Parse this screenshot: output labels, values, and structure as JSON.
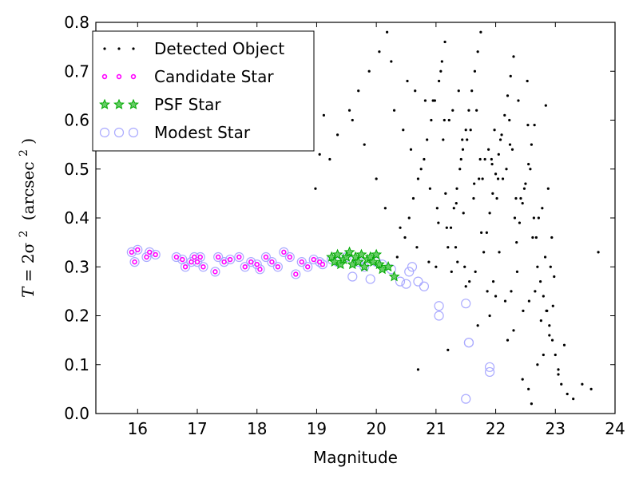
{
  "chart_data": {
    "type": "scatter",
    "title": "",
    "xlabel": "Magnitude",
    "ylabel": {
      "T": "T",
      "eq": "= 2σ",
      "sup": "2",
      "unit": "(arcsec",
      "unit_sup": "2",
      "close": ")"
    },
    "xlim": [
      15.3,
      24.0
    ],
    "ylim": [
      0.0,
      0.8
    ],
    "xticks": [
      16,
      17,
      18,
      19,
      20,
      21,
      22,
      23,
      24
    ],
    "yticks": [
      0.0,
      0.1,
      0.2,
      0.3,
      0.4,
      0.5,
      0.6,
      0.7,
      0.8
    ],
    "grid": false,
    "legend_position": "top-left",
    "colors": {
      "detected": "#000000",
      "candidate_edge": "#ff00ff",
      "candidate_face": "#ffffff",
      "psf_edge": "#00aa00",
      "psf_face": "#66cc66",
      "modest_edge": "#aaaaff"
    },
    "series": [
      {
        "name": "Detected Object",
        "marker": "dot",
        "x": [
          19.05,
          18.98,
          19.12,
          19.22,
          19.35,
          19.55,
          19.7,
          19.88,
          20.05,
          20.18,
          20.35,
          20.48,
          20.55,
          20.62,
          20.7,
          20.8,
          20.85,
          20.92,
          20.98,
          21.05,
          21.1,
          21.15,
          21.2,
          21.25,
          21.3,
          21.35,
          21.4,
          21.45,
          21.5,
          21.55,
          21.6,
          21.65,
          21.7,
          21.75,
          21.8,
          21.85,
          21.9,
          21.95,
          22.0,
          22.05,
          22.1,
          22.15,
          22.2,
          22.25,
          22.3,
          22.35,
          22.4,
          22.45,
          22.5,
          22.55,
          22.6,
          22.65,
          22.7,
          22.75,
          22.8,
          22.85,
          22.9,
          22.95,
          23.0,
          23.05,
          23.1,
          23.2,
          23.3,
          23.45,
          23.6,
          23.72,
          20.3,
          20.45,
          20.58,
          20.75,
          20.9,
          21.02,
          21.18,
          21.33,
          21.48,
          21.63,
          21.78,
          21.93,
          22.08,
          22.23,
          22.38,
          22.53,
          22.68,
          22.83,
          22.98,
          21.12,
          21.42,
          21.72,
          22.02,
          22.32,
          22.62,
          22.92,
          21.22,
          21.52,
          21.82,
          22.12,
          22.42,
          22.72,
          20.65,
          20.95,
          21.28,
          21.58,
          21.88,
          22.18,
          22.48,
          22.78,
          21.08,
          21.38,
          21.68,
          21.98,
          22.28,
          22.58,
          22.88,
          20.25,
          20.52,
          20.82,
          21.14,
          21.44,
          21.74,
          22.04,
          22.34,
          22.64,
          22.94,
          21.04,
          21.34,
          21.64,
          21.94,
          22.24,
          22.54,
          22.84,
          19.6,
          19.8,
          20.0,
          20.15,
          20.4,
          20.68,
          20.88,
          21.16,
          21.46,
          21.76,
          22.06,
          22.36,
          22.66,
          22.96,
          21.26,
          21.56,
          21.86,
          22.16,
          22.46,
          22.76,
          21.36,
          21.66,
          21.96,
          22.26,
          22.56,
          22.86,
          23.15,
          22.7,
          22.9,
          23.05,
          22.55,
          22.8,
          22.45,
          22.6,
          20.7,
          21.5,
          21.9,
          22.2,
          22.0,
          21.7,
          22.3,
          21.2,
          21.0
        ],
        "y": [
          0.53,
          0.46,
          0.61,
          0.52,
          0.57,
          0.62,
          0.66,
          0.7,
          0.74,
          0.78,
          0.32,
          0.36,
          0.4,
          0.44,
          0.48,
          0.52,
          0.56,
          0.6,
          0.64,
          0.68,
          0.72,
          0.76,
          0.34,
          0.38,
          0.42,
          0.46,
          0.5,
          0.54,
          0.58,
          0.62,
          0.66,
          0.7,
          0.74,
          0.78,
          0.33,
          0.37,
          0.41,
          0.45,
          0.49,
          0.53,
          0.57,
          0.61,
          0.65,
          0.69,
          0.73,
          0.35,
          0.39,
          0.43,
          0.47,
          0.51,
          0.55,
          0.59,
          0.3,
          0.27,
          0.24,
          0.21,
          0.18,
          0.15,
          0.12,
          0.09,
          0.06,
          0.04,
          0.03,
          0.06,
          0.05,
          0.33,
          0.62,
          0.58,
          0.54,
          0.5,
          0.46,
          0.42,
          0.38,
          0.34,
          0.3,
          0.44,
          0.48,
          0.52,
          0.56,
          0.6,
          0.64,
          0.68,
          0.36,
          0.32,
          0.28,
          0.56,
          0.52,
          0.48,
          0.44,
          0.4,
          0.36,
          0.3,
          0.6,
          0.56,
          0.52,
          0.48,
          0.44,
          0.4,
          0.66,
          0.64,
          0.62,
          0.58,
          0.54,
          0.5,
          0.46,
          0.42,
          0.7,
          0.66,
          0.62,
          0.58,
          0.54,
          0.5,
          0.46,
          0.72,
          0.68,
          0.64,
          0.6,
          0.56,
          0.52,
          0.48,
          0.44,
          0.4,
          0.36,
          0.39,
          0.43,
          0.47,
          0.51,
          0.55,
          0.59,
          0.63,
          0.6,
          0.55,
          0.48,
          0.42,
          0.38,
          0.34,
          0.31,
          0.45,
          0.41,
          0.37,
          0.33,
          0.29,
          0.25,
          0.22,
          0.29,
          0.27,
          0.25,
          0.23,
          0.21,
          0.19,
          0.31,
          0.29,
          0.27,
          0.25,
          0.23,
          0.21,
          0.14,
          0.1,
          0.16,
          0.08,
          0.05,
          0.12,
          0.07,
          0.02,
          0.09,
          0.26,
          0.2,
          0.15,
          0.24,
          0.18,
          0.17,
          0.13,
          0.3
        ]
      },
      {
        "name": "Candidate Star",
        "marker": "small-circle",
        "x": [
          15.9,
          15.95,
          16.0,
          16.15,
          16.2,
          16.3,
          16.65,
          16.75,
          16.8,
          16.9,
          16.95,
          17.0,
          17.05,
          17.1,
          17.3,
          17.35,
          17.45,
          17.55,
          17.7,
          17.8,
          17.9,
          18.0,
          18.05,
          18.15,
          18.25,
          18.35,
          18.45,
          18.55,
          18.65,
          18.75,
          18.85,
          18.95,
          19.05,
          19.1
        ],
        "y": [
          0.33,
          0.31,
          0.335,
          0.32,
          0.33,
          0.325,
          0.32,
          0.315,
          0.3,
          0.31,
          0.32,
          0.31,
          0.32,
          0.3,
          0.29,
          0.32,
          0.31,
          0.315,
          0.32,
          0.3,
          0.31,
          0.305,
          0.295,
          0.32,
          0.31,
          0.3,
          0.33,
          0.32,
          0.285,
          0.31,
          0.3,
          0.315,
          0.31,
          0.305
        ]
      },
      {
        "name": "PSF Star",
        "marker": "star",
        "x": [
          19.25,
          19.3,
          19.35,
          19.4,
          19.45,
          19.5,
          19.55,
          19.6,
          19.65,
          19.7,
          19.75,
          19.8,
          19.85,
          19.9,
          19.95,
          20.0,
          20.05,
          20.1,
          20.2,
          20.3
        ],
        "y": [
          0.32,
          0.31,
          0.325,
          0.305,
          0.315,
          0.32,
          0.33,
          0.305,
          0.32,
          0.31,
          0.325,
          0.3,
          0.315,
          0.32,
          0.31,
          0.325,
          0.305,
          0.295,
          0.3,
          0.28
        ]
      },
      {
        "name": "Modest Star",
        "marker": "circle",
        "x": [
          15.9,
          15.95,
          16.0,
          16.15,
          16.2,
          16.3,
          16.65,
          16.75,
          16.8,
          16.9,
          16.95,
          17.0,
          17.05,
          17.1,
          17.3,
          17.35,
          17.45,
          17.55,
          17.7,
          17.8,
          17.9,
          18.0,
          18.05,
          18.15,
          18.25,
          18.35,
          18.45,
          18.55,
          18.65,
          18.75,
          18.85,
          18.95,
          19.05,
          19.1,
          19.25,
          19.35,
          19.5,
          19.6,
          19.7,
          19.8,
          19.9,
          20.0,
          20.1,
          20.25,
          20.4,
          20.5,
          20.55,
          20.6,
          20.7,
          20.8,
          21.05,
          21.05,
          21.5,
          21.55,
          21.5,
          21.9,
          21.9,
          21.55
        ],
        "y": [
          0.33,
          0.31,
          0.335,
          0.32,
          0.33,
          0.325,
          0.32,
          0.315,
          0.3,
          0.31,
          0.32,
          0.31,
          0.32,
          0.3,
          0.29,
          0.32,
          0.31,
          0.315,
          0.32,
          0.3,
          0.31,
          0.305,
          0.295,
          0.32,
          0.31,
          0.3,
          0.33,
          0.32,
          0.285,
          0.31,
          0.3,
          0.315,
          0.31,
          0.305,
          0.315,
          0.31,
          0.32,
          0.28,
          0.31,
          0.3,
          0.275,
          0.31,
          0.305,
          0.295,
          0.27,
          0.265,
          0.29,
          0.3,
          0.27,
          0.26,
          0.22,
          0.2,
          0.225,
          0.145,
          0.03,
          0.095,
          0.085,
          0.145
        ]
      }
    ]
  }
}
